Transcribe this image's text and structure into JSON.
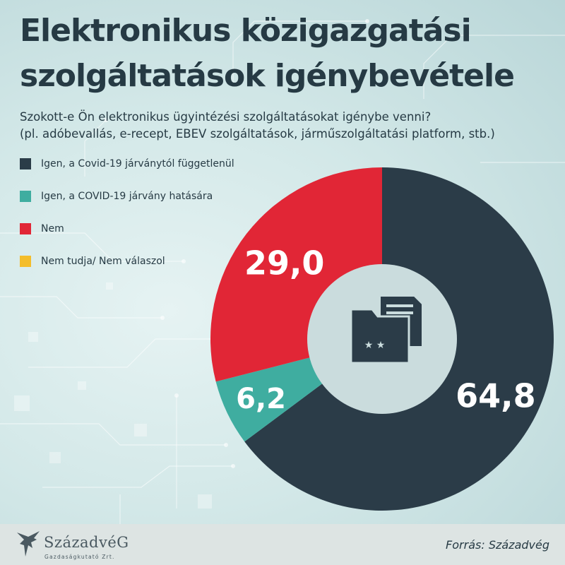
{
  "title_line1": "Elektronikus közigazgatási",
  "title_line2": "szolgáltatások igénybevétele",
  "subtitle_line1": "Szokott-e Ön elektronikus ügyintézési szolgáltatásokat igénybe venni?",
  "subtitle_line2": "(pl. adóbevallás, e-recept, EBEV szolgáltatások, járműszolgáltatási platform, stb.)",
  "chart_data": {
    "type": "pie",
    "variant": "donut",
    "categories": [
      "Igen, a Covid-19 járványtól függetlenül",
      "Igen, a COVID-19 járvány hatására",
      "Nem",
      "Nem tudja/ Nem válaszol"
    ],
    "values": [
      64.8,
      6.2,
      29.0,
      0
    ],
    "value_labels": [
      "64,8",
      "6,2",
      "29,0",
      ""
    ],
    "colors": [
      "#2b3c48",
      "#3fada0",
      "#e12636",
      "#f4bd2b"
    ],
    "legend_position": "left",
    "center_icon": "folder-document-icon"
  },
  "footer": {
    "logo_text": "SzázadvéG",
    "logo_subtext": "Gazdaságkutató Zrt.",
    "source": "Forrás: Századvég",
    "logo_icon": "eagle-logo-icon"
  }
}
